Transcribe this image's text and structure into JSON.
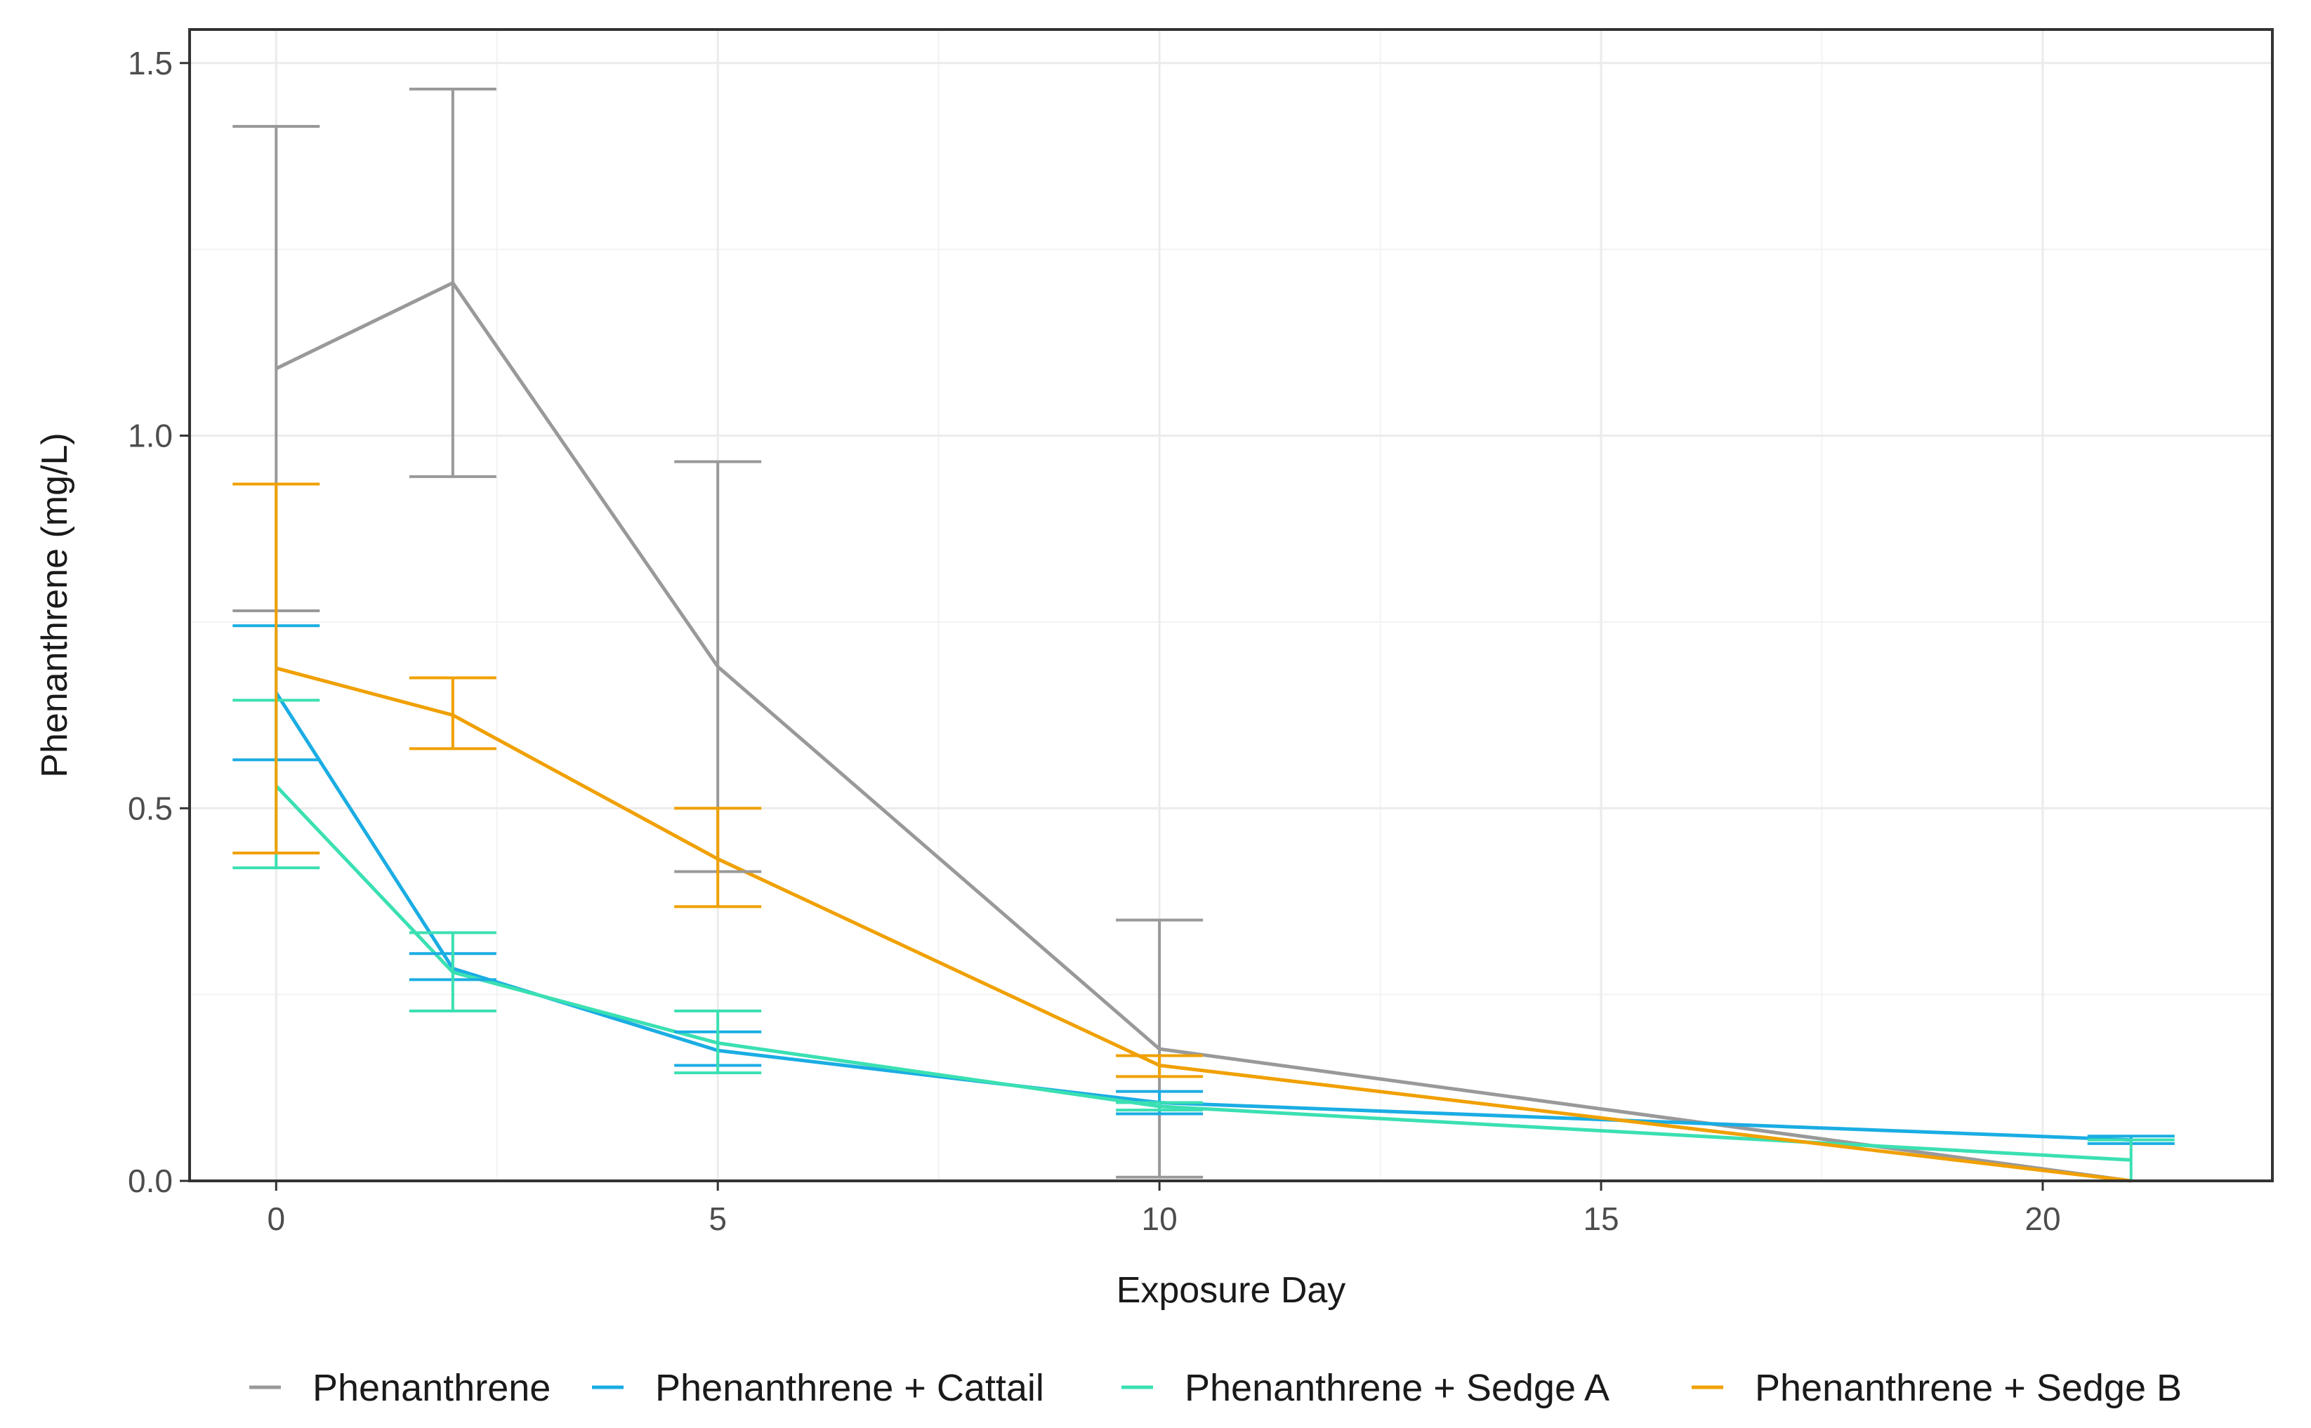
{
  "chart_data": {
    "type": "line",
    "title": "",
    "xlabel": "Exposure Day",
    "ylabel": "Phenanthrene (mg/L)",
    "xlim": [
      -0.98,
      22.6
    ],
    "ylim": [
      0,
      1.545
    ],
    "xticks": [
      0,
      5,
      10,
      15,
      20
    ],
    "xtick_labels": [
      "0",
      "5",
      "10",
      "15",
      "20"
    ],
    "yticks": [
      0,
      0.5,
      1,
      1.5
    ],
    "ytick_labels": [
      "0.0",
      "0.5",
      "1.0",
      "1.5"
    ],
    "grid": true,
    "legend_position": "bottom",
    "x": [
      0,
      2,
      5,
      10,
      21
    ],
    "series": [
      {
        "name": "Phenanthrene",
        "color": "#999999",
        "values": [
          1.09,
          1.205,
          0.69,
          0.177,
          0.0
        ],
        "error_low": [
          0.765,
          0.945,
          0.415,
          0.005,
          0.0
        ],
        "error_high": [
          1.415,
          1.465,
          0.965,
          0.35,
          0.0
        ]
      },
      {
        "name": "Phenanthrene + Cattail",
        "color": "#1AADE3",
        "values": [
          0.655,
          0.285,
          0.175,
          0.105,
          0.055
        ],
        "error_low": [
          0.565,
          0.27,
          0.155,
          0.09,
          0.05
        ],
        "error_high": [
          0.745,
          0.305,
          0.2,
          0.12,
          0.06
        ]
      },
      {
        "name": "Phenanthrene + Sedge A",
        "color": "#3BE0B2",
        "values": [
          0.53,
          0.28,
          0.185,
          0.1,
          0.028
        ],
        "error_low": [
          0.42,
          0.228,
          0.145,
          0.095,
          0.0
        ],
        "error_high": [
          0.645,
          0.333,
          0.228,
          0.105,
          0.055
        ]
      },
      {
        "name": "Phenanthrene + Sedge B",
        "color": "#F0A000",
        "values": [
          0.688,
          0.625,
          0.432,
          0.155,
          0.0
        ],
        "error_low": [
          0.44,
          0.58,
          0.368,
          0.14,
          0.0
        ],
        "error_high": [
          0.935,
          0.675,
          0.5,
          0.168,
          0.0
        ]
      }
    ]
  }
}
